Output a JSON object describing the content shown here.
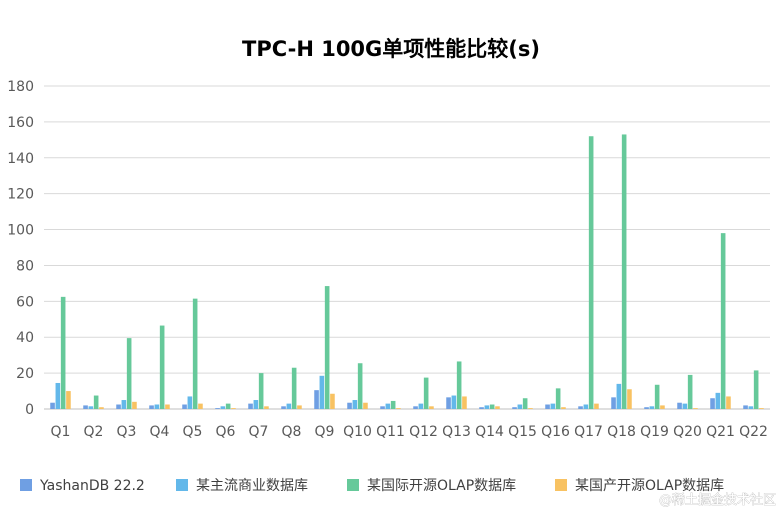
{
  "chart_data": {
    "type": "bar",
    "title": "TPC-H 100G单项性能比较(s)",
    "xlabel": "",
    "ylabel": "",
    "ylim": [
      0,
      180
    ],
    "yticks": [
      0,
      20,
      40,
      60,
      80,
      100,
      120,
      140,
      160,
      180
    ],
    "grid": true,
    "legend_position": "bottom",
    "categories": [
      "Q1",
      "Q2",
      "Q3",
      "Q4",
      "Q5",
      "Q6",
      "Q7",
      "Q8",
      "Q9",
      "Q10",
      "Q11",
      "Q12",
      "Q13",
      "Q14",
      "Q15",
      "Q16",
      "Q17",
      "Q18",
      "Q19",
      "Q20",
      "Q21",
      "Q22"
    ],
    "series": [
      {
        "name": "YashanDB 22.2",
        "color": "#6f9fe3",
        "values": [
          3.5,
          2,
          2.5,
          2,
          2.5,
          0.5,
          3,
          1.5,
          10.5,
          3.5,
          1.5,
          1.5,
          6.5,
          1,
          1,
          2.5,
          1.5,
          6.5,
          1,
          3.5,
          6,
          2
        ]
      },
      {
        "name": "某主流商业数据库",
        "color": "#63b8ea",
        "values": [
          14.5,
          1.5,
          5,
          2.5,
          7,
          1.5,
          5,
          3,
          18.5,
          5,
          3,
          3,
          7.5,
          2,
          2.5,
          3,
          2.5,
          14,
          1.5,
          3,
          9,
          1.5
        ]
      },
      {
        "name": "某国际开源OLAP数据库",
        "color": "#66c99a",
        "values": [
          62.5,
          7.5,
          39.5,
          46.5,
          61.5,
          3,
          20,
          23,
          68.5,
          25.5,
          4.5,
          17.5,
          26.5,
          2.5,
          6,
          11.5,
          152,
          153,
          13.5,
          19,
          98,
          21.5
        ]
      },
      {
        "name": "某国产开源OLAP数据库",
        "color": "#f8c262",
        "values": [
          10,
          1,
          4,
          2.5,
          3,
          0.5,
          1.5,
          2,
          8.5,
          3.5,
          0.5,
          1.5,
          7,
          1.5,
          0.5,
          1,
          3,
          11,
          2,
          0.5,
          7,
          0.5
        ]
      }
    ]
  },
  "watermark": "@稀土掘金技术社区"
}
